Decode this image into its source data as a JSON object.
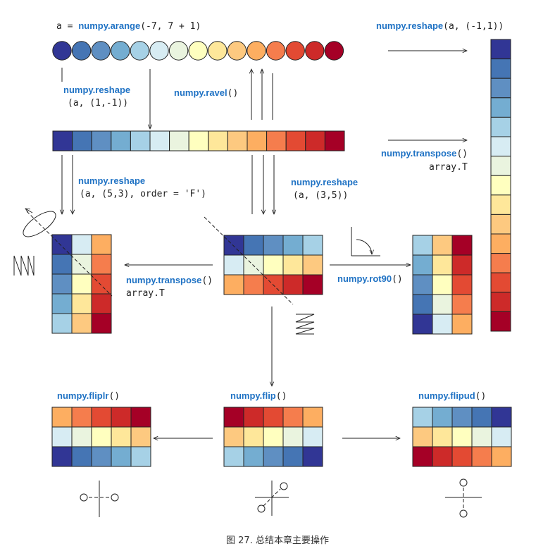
{
  "palette": [
    "#313695",
    "#4575b4",
    "#5f8fc2",
    "#74add1",
    "#a6d1e6",
    "#d7ecf3",
    "#eaf4df",
    "#ffffbf",
    "#fee79a",
    "#fdc980",
    "#fdae61",
    "#f57d4d",
    "#e34a33",
    "#cd2a29",
    "#a50026"
  ],
  "captions": {
    "arange_prefix": "a = ",
    "arange_fn": "numpy.arange",
    "arange_args": "(-7, 7 + 1)",
    "reshape_col_fn": "numpy.reshape",
    "reshape_col_args": "(a, (-1,1))",
    "reshape_row_fn": "numpy.reshape",
    "reshape_row_args": "(a, (1,-1))",
    "ravel_fn": "numpy.ravel",
    "ravel_args": "()",
    "transpose1_fn": "numpy.transpose",
    "transpose1_args": "()",
    "transpose1_alt": "array.T",
    "reshapeF_fn": "numpy.reshape",
    "reshapeF_args": "(a, (5,3), order = 'F')",
    "reshape35_fn": "numpy.reshape",
    "reshape35_args": "(a, (3,5))",
    "transpose2_fn": "numpy.transpose",
    "transpose2_args": "()",
    "transpose2_alt": "array.T",
    "rot90_fn": "numpy.rot90",
    "rot90_args": "()",
    "fliplr_fn": "numpy.fliplr",
    "fliplr_args": "()",
    "flip_fn": "numpy.flip",
    "flip_args": "()",
    "flipud_fn": "numpy.flipud",
    "flipud_args": "()",
    "figure_caption": "图 27. 总结本章主要操作"
  },
  "matrices": {
    "main_3x5": [
      [
        0,
        1,
        2,
        3,
        4
      ],
      [
        5,
        6,
        7,
        8,
        9
      ],
      [
        10,
        11,
        12,
        13,
        14
      ]
    ],
    "reshapeF_5x3": [
      [
        0,
        5,
        10
      ],
      [
        1,
        6,
        11
      ],
      [
        2,
        7,
        12
      ],
      [
        3,
        8,
        13
      ],
      [
        4,
        9,
        14
      ]
    ],
    "rot90_5x3": [
      [
        4,
        9,
        14
      ],
      [
        3,
        8,
        13
      ],
      [
        2,
        7,
        12
      ],
      [
        1,
        6,
        11
      ],
      [
        0,
        5,
        10
      ]
    ],
    "fliplr_3x5": [
      [
        10,
        11,
        12,
        13,
        14
      ],
      [
        5,
        6,
        7,
        8,
        9
      ],
      [
        0,
        1,
        2,
        3,
        4
      ]
    ],
    "flip_3x5": [
      [
        14,
        13,
        12,
        11,
        10
      ],
      [
        9,
        8,
        7,
        6,
        5
      ],
      [
        4,
        3,
        2,
        1,
        0
      ]
    ],
    "flipud_3x5": [
      [
        4,
        3,
        2,
        1,
        0
      ],
      [
        9,
        8,
        7,
        6,
        5
      ],
      [
        14,
        13,
        12,
        11,
        10
      ]
    ]
  }
}
